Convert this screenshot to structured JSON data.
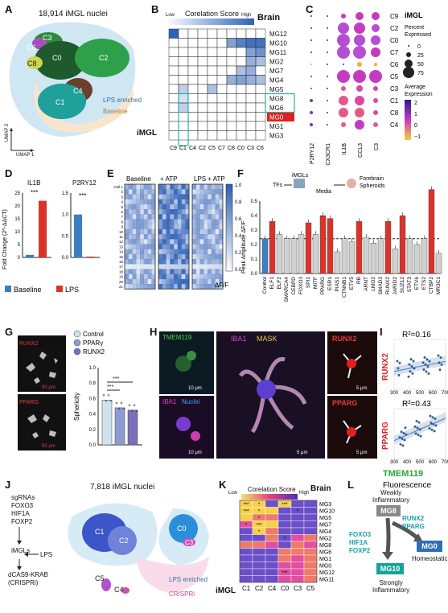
{
  "panels": {
    "A": {
      "label": "A",
      "title": "18,914 iMGL nuclei",
      "clusters": [
        "C3",
        "C6",
        "C0",
        "C2",
        "C8",
        "C4",
        "C1"
      ],
      "legend": [
        "LPS enriched",
        "Baseline"
      ],
      "axis_x": "UMAP 1",
      "axis_y": "UMAP 2",
      "colors": {
        "lps": "#bfe0f2",
        "baseline": "#f6e3c9"
      }
    },
    "B": {
      "label": "B",
      "colorbar_title": "Corelation Score",
      "low": "Low",
      "high": "High",
      "brain_label": "Brain",
      "rows": [
        "MG12",
        "MG10",
        "MG11",
        "MG2",
        "MG7",
        "MG4",
        "MG5",
        "MG8",
        "MG6",
        "MG0",
        "MG1",
        "MG3"
      ],
      "xlabel": "iMGL",
      "cols": [
        "C9",
        "C1",
        "C4",
        "C2",
        "C5",
        "C7",
        "C8",
        "C0",
        "C3",
        "C6"
      ]
    },
    "C": {
      "label": "C",
      "rows": [
        "C9",
        "C2",
        "C0",
        "C7",
        "C6",
        "C5",
        "C3",
        "C1",
        "C8",
        "C4"
      ],
      "genes": [
        "P2RY12",
        "CX3CR1",
        "IL1B",
        "CCL3",
        "C3"
      ],
      "legend_title": "iMGL",
      "pct_title": "Percent\nExpressed",
      "pct_ticks": [
        "0",
        "25",
        "50",
        "75"
      ],
      "avg_title": "Average\nExpression",
      "avg_ticks": [
        "2",
        "1",
        "0",
        "−1"
      ]
    },
    "D": {
      "label": "D",
      "ylabel": "Fold Change (2^-ΔΔCT)",
      "genes": [
        "IL1B",
        "P2RY12"
      ],
      "sig": [
        "***",
        "***"
      ],
      "left_ticks": [
        "0",
        "5",
        "10",
        "15",
        "20",
        "25"
      ],
      "right_ticks": [
        "0.0",
        "0.5",
        "1.0",
        "1.5"
      ],
      "legend": [
        "Baseline",
        "LPS"
      ],
      "colors": {
        "baseline": "#3a7fc1",
        "lps": "#d9332a"
      }
    },
    "E": {
      "label": "E",
      "conditions": [
        "Baseline",
        "+ ATP",
        "LPS + ATP"
      ],
      "cells": [
        "Cell 1",
        "2",
        "3",
        "4",
        "5",
        "6",
        "7",
        "8",
        "9",
        "10",
        "11",
        "12",
        "13",
        "14",
        "15",
        "16",
        "17",
        "18",
        "19",
        "20",
        "21"
      ],
      "cb_ticks": [
        "1.0",
        "0.8",
        "0.6",
        "0.4",
        "0.2",
        "0.0"
      ],
      "cb_label": "ΔF/F"
    },
    "F": {
      "label": "F",
      "ylabel": "Peak Amplitude ΔF/F",
      "ticks": [
        "0.0",
        "0.1",
        "0.2",
        "0.3",
        "0.4",
        "0.5"
      ],
      "schematic": [
        "TFs",
        "iMGLs",
        "Media",
        "Forebrain\nSpheroids"
      ],
      "bars": [
        "Control",
        "ELF1",
        "ELF2",
        "SMARCA4",
        "CEBPD",
        "FOXO3",
        "SPI1",
        "MITF",
        "PPARG",
        "ESR1",
        "PIAS1",
        "CTNNB1",
        "ETV5",
        "RB",
        "ARNT",
        "LMO2",
        "SMAD3",
        "RUNX2",
        "JARID2",
        "SUZ12",
        "STAT3",
        "ETV6",
        "ETS2",
        "CTBP2",
        "MR3C1"
      ]
    },
    "G": {
      "label": "G",
      "images": [
        "RUNX2",
        "PPARG"
      ],
      "scale": [
        "50 μm",
        "50 μm"
      ],
      "legend": [
        "Control",
        "PPARγ",
        "RUNX2"
      ],
      "ylabel": "Sphericity",
      "ticks": [
        "0.0",
        "0.2",
        "0.4",
        "0.6",
        "0.8",
        "1.0"
      ],
      "sig": [
        "***",
        "***"
      ]
    },
    "H": {
      "label": "H",
      "tmem": "TMEM119",
      "iba1": "IBA1",
      "nuclei": "Nuclei",
      "mask_iba1": "IBA1",
      "mask": "MASK",
      "runx2": "RUNX2",
      "pparg": "PPARG",
      "scale_a": "10 μm",
      "scale_b": "10 μm",
      "scale_c": "5 μm",
      "scale_d": "5 μm",
      "scale_e": "5 μm"
    },
    "I": {
      "label": "I",
      "r2_top": "R²=0.16",
      "r2_bottom": "R²=0.43",
      "ylabel_top": "RUNX2",
      "ylabel_bottom": "PPARG",
      "xticks": [
        "300",
        "400",
        "500",
        "600",
        "700"
      ],
      "xlabel_a": "TMEM119",
      "xlabel_b": "Fluorescence"
    },
    "J": {
      "label": "J",
      "title": "7,818 iMGL nuclei",
      "sgrnas": [
        "sgRNAs",
        "FOXO3",
        "HIF1A",
        "FOXP2"
      ],
      "imgl": "iMGLs",
      "lps": "LPS",
      "crispr": [
        "dCAS9-KRAB",
        "(CRISPRi)"
      ],
      "clusters": [
        "C1",
        "C2",
        "C0",
        "C3",
        "C5",
        "C4"
      ],
      "legend": [
        "LPS enriched",
        "CRISPRi"
      ]
    },
    "K": {
      "label": "K",
      "colorbar_title": "Corelation Score",
      "low": "Low",
      "high": "High",
      "brain_label": "Brain",
      "rows": [
        "MG3",
        "MG10",
        "MG5",
        "MG7",
        "MG4",
        "MG2",
        "MG8",
        "MG6",
        "MG1",
        "MG0",
        "MG12",
        "MG11"
      ],
      "xlabel": "iMGL",
      "cols": [
        "C1",
        "C2",
        "C4",
        "C0",
        "C3",
        "C5"
      ]
    },
    "L": {
      "label": "L",
      "weak": "Weakly\nInflammatory",
      "mg8": "MG8",
      "tf_left": [
        "FOXO3",
        "HIF1A",
        "FOXP2"
      ],
      "tf_right": [
        "RUNX2",
        "PPARG"
      ],
      "mg0": "MG0",
      "homeo": "Homeostatic",
      "mg10": "MG10",
      "strong": "Strongly\nInflammatory"
    }
  }
}
